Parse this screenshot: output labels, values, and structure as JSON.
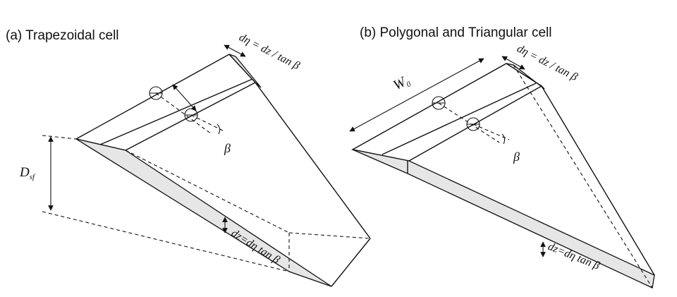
{
  "panels": [
    {
      "title": "(a) Trapezoidal cell",
      "labels": {
        "depth": "D",
        "depth_sub": "sf",
        "slope": "β",
        "top_relation": "dη = dz / tan β",
        "bottom_relation": "dz=dη tan β"
      }
    },
    {
      "title": "(b) Polygonal and Triangular cell",
      "labels": {
        "width": "W",
        "width_sub": "0",
        "slope": "β",
        "top_relation": "dη = dz / tan β",
        "bottom_relation": "dz=dη tan β"
      }
    }
  ]
}
